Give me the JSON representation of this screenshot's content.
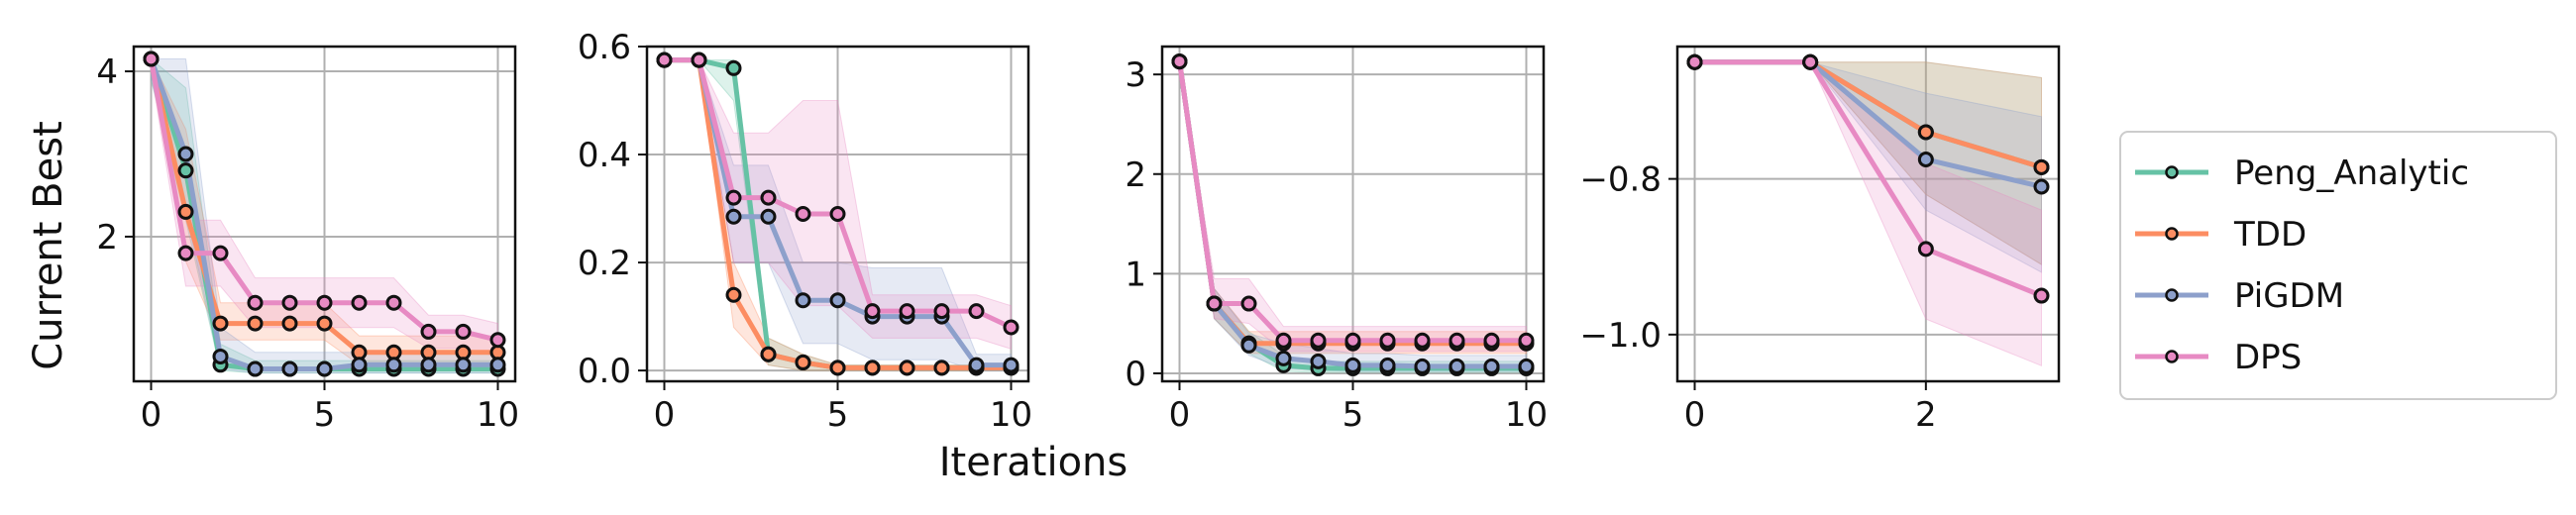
{
  "figure": {
    "ylabel": "Current Best",
    "xlabel": "Iterations"
  },
  "legend": {
    "placement": "right",
    "entries": [
      {
        "name": "Peng_Analytic",
        "color": "#66c2a5"
      },
      {
        "name": "TDD",
        "color": "#fc8d62"
      },
      {
        "name": "PiGDM",
        "color": "#8da0cb"
      },
      {
        "name": "DPS",
        "color": "#e78ac3"
      }
    ]
  },
  "chart_data": [
    {
      "type": "line",
      "grid": true,
      "xlim": [
        -0.5,
        10.5
      ],
      "ylim": [
        0.25,
        4.3
      ],
      "xticks": [
        0,
        5,
        10
      ],
      "yticks": [
        2,
        4
      ],
      "x": [
        0,
        1,
        2,
        3,
        4,
        5,
        6,
        7,
        8,
        9,
        10
      ],
      "series": [
        {
          "name": "Peng_Analytic",
          "color": "#66c2a5",
          "values": [
            4.15,
            2.8,
            0.45,
            0.4,
            0.4,
            0.4,
            0.4,
            0.4,
            0.4,
            0.4,
            0.4
          ],
          "lower": [
            3.9,
            2.2,
            0.38,
            0.35,
            0.35,
            0.35,
            0.35,
            0.35,
            0.35,
            0.35,
            0.35
          ],
          "upper": [
            4.15,
            3.8,
            0.7,
            0.5,
            0.5,
            0.5,
            0.5,
            0.5,
            0.5,
            0.5,
            0.5
          ]
        },
        {
          "name": "TDD",
          "color": "#fc8d62",
          "values": [
            4.15,
            2.3,
            0.95,
            0.95,
            0.95,
            0.95,
            0.6,
            0.6,
            0.6,
            0.6,
            0.6
          ],
          "lower": [
            4.0,
            1.7,
            0.75,
            0.75,
            0.75,
            0.75,
            0.45,
            0.45,
            0.45,
            0.45,
            0.45
          ],
          "upper": [
            4.15,
            3.3,
            1.2,
            1.2,
            1.2,
            1.2,
            0.8,
            0.8,
            0.8,
            0.8,
            0.8
          ]
        },
        {
          "name": "PiGDM",
          "color": "#8da0cb",
          "values": [
            4.15,
            3.0,
            0.55,
            0.4,
            0.4,
            0.4,
            0.45,
            0.45,
            0.45,
            0.45,
            0.45
          ],
          "lower": [
            3.9,
            2.3,
            0.4,
            0.35,
            0.35,
            0.35,
            0.35,
            0.35,
            0.35,
            0.35,
            0.35
          ],
          "upper": [
            4.15,
            4.15,
            0.9,
            0.6,
            0.6,
            0.6,
            0.6,
            0.6,
            0.6,
            0.6,
            0.6
          ]
        },
        {
          "name": "DPS",
          "color": "#e78ac3",
          "values": [
            4.15,
            1.8,
            1.8,
            1.2,
            1.2,
            1.2,
            1.2,
            1.2,
            0.85,
            0.85,
            0.75
          ],
          "lower": [
            4.0,
            1.4,
            1.4,
            0.9,
            0.9,
            0.9,
            0.9,
            0.9,
            0.65,
            0.65,
            0.55
          ],
          "upper": [
            4.15,
            2.2,
            2.2,
            1.5,
            1.5,
            1.5,
            1.5,
            1.5,
            1.05,
            1.05,
            0.95
          ]
        }
      ]
    },
    {
      "type": "line",
      "grid": true,
      "xlim": [
        -0.5,
        10.5
      ],
      "ylim": [
        -0.02,
        0.6
      ],
      "xticks": [
        0,
        5,
        10
      ],
      "yticks": [
        0.0,
        0.2,
        0.4,
        0.6
      ],
      "ytick_labels": [
        "0.0",
        "0.2",
        "0.4",
        "0.6"
      ],
      "x": [
        0,
        1,
        2,
        3,
        4,
        5,
        6,
        7,
        8,
        9,
        10
      ],
      "series": [
        {
          "name": "Peng_Analytic",
          "color": "#66c2a5",
          "values": [
            0.575,
            0.575,
            0.56,
            0.03,
            0.015,
            0.005,
            0.005,
            0.005,
            0.005,
            0.005,
            0.005
          ],
          "lower": [
            0.575,
            0.575,
            0.5,
            0.01,
            0.0,
            0.0,
            0.0,
            0.0,
            0.0,
            0.0,
            0.0
          ],
          "upper": [
            0.575,
            0.575,
            0.575,
            0.06,
            0.03,
            0.01,
            0.01,
            0.01,
            0.01,
            0.01,
            0.01
          ]
        },
        {
          "name": "TDD",
          "color": "#fc8d62",
          "values": [
            0.575,
            0.575,
            0.14,
            0.03,
            0.015,
            0.005,
            0.005,
            0.005,
            0.005,
            0.005,
            0.005
          ],
          "lower": [
            0.575,
            0.575,
            0.08,
            0.01,
            0.0,
            0.0,
            0.0,
            0.0,
            0.0,
            0.0,
            0.0
          ],
          "upper": [
            0.575,
            0.575,
            0.2,
            0.06,
            0.03,
            0.01,
            0.01,
            0.01,
            0.01,
            0.01,
            0.01
          ]
        },
        {
          "name": "PiGDM",
          "color": "#8da0cb",
          "values": [
            0.575,
            0.575,
            0.285,
            0.285,
            0.13,
            0.13,
            0.1,
            0.1,
            0.1,
            0.01,
            0.01
          ],
          "lower": [
            0.575,
            0.575,
            0.2,
            0.2,
            0.05,
            0.05,
            0.02,
            0.02,
            0.02,
            0.0,
            0.0
          ],
          "upper": [
            0.575,
            0.575,
            0.38,
            0.38,
            0.2,
            0.2,
            0.19,
            0.19,
            0.19,
            0.03,
            0.03
          ]
        },
        {
          "name": "DPS",
          "color": "#e78ac3",
          "values": [
            0.575,
            0.575,
            0.32,
            0.32,
            0.29,
            0.29,
            0.11,
            0.11,
            0.11,
            0.11,
            0.08
          ],
          "lower": [
            0.575,
            0.575,
            0.2,
            0.2,
            0.12,
            0.12,
            0.06,
            0.06,
            0.06,
            0.06,
            0.04
          ],
          "upper": [
            0.575,
            0.575,
            0.44,
            0.44,
            0.5,
            0.5,
            0.14,
            0.14,
            0.14,
            0.14,
            0.12
          ]
        }
      ]
    },
    {
      "type": "line",
      "grid": true,
      "xlim": [
        -0.5,
        10.5
      ],
      "ylim": [
        -0.08,
        3.28
      ],
      "xticks": [
        0,
        5,
        10
      ],
      "yticks": [
        0,
        1,
        2,
        3
      ],
      "x": [
        0,
        1,
        2,
        3,
        4,
        5,
        6,
        7,
        8,
        9,
        10
      ],
      "series": [
        {
          "name": "Peng_Analytic",
          "color": "#66c2a5",
          "values": [
            3.13,
            0.7,
            0.3,
            0.08,
            0.05,
            0.05,
            0.05,
            0.05,
            0.05,
            0.05,
            0.05
          ],
          "lower": [
            3.13,
            0.55,
            0.2,
            0.02,
            0.01,
            0.01,
            0.01,
            0.01,
            0.01,
            0.01,
            0.01
          ],
          "upper": [
            3.13,
            0.85,
            0.42,
            0.18,
            0.12,
            0.12,
            0.12,
            0.12,
            0.12,
            0.12,
            0.12
          ]
        },
        {
          "name": "TDD",
          "color": "#fc8d62",
          "values": [
            3.13,
            0.7,
            0.3,
            0.3,
            0.3,
            0.3,
            0.3,
            0.3,
            0.3,
            0.3,
            0.3
          ],
          "lower": [
            3.13,
            0.55,
            0.2,
            0.2,
            0.2,
            0.2,
            0.2,
            0.2,
            0.2,
            0.2,
            0.2
          ],
          "upper": [
            3.13,
            0.85,
            0.42,
            0.42,
            0.42,
            0.42,
            0.42,
            0.42,
            0.42,
            0.42,
            0.42
          ]
        },
        {
          "name": "PiGDM",
          "color": "#8da0cb",
          "values": [
            3.13,
            0.7,
            0.28,
            0.15,
            0.12,
            0.08,
            0.08,
            0.07,
            0.07,
            0.07,
            0.07
          ],
          "lower": [
            3.13,
            0.55,
            0.18,
            0.05,
            0.03,
            0.02,
            0.02,
            0.02,
            0.02,
            0.02,
            0.02
          ],
          "upper": [
            3.13,
            0.85,
            0.4,
            0.3,
            0.25,
            0.2,
            0.2,
            0.18,
            0.18,
            0.18,
            0.18
          ]
        },
        {
          "name": "DPS",
          "color": "#e78ac3",
          "values": [
            3.13,
            0.7,
            0.7,
            0.33,
            0.33,
            0.33,
            0.33,
            0.33,
            0.33,
            0.33,
            0.33
          ],
          "lower": [
            3.13,
            0.55,
            0.5,
            0.22,
            0.22,
            0.22,
            0.22,
            0.22,
            0.22,
            0.22,
            0.22
          ],
          "upper": [
            3.13,
            0.95,
            0.95,
            0.47,
            0.47,
            0.47,
            0.47,
            0.47,
            0.47,
            0.47,
            0.47
          ]
        }
      ]
    },
    {
      "type": "line",
      "grid": true,
      "xlim": [
        -0.15,
        3.15
      ],
      "ylim": [
        -1.06,
        -0.63
      ],
      "xticks": [
        0,
        2
      ],
      "yticks": [
        -0.8,
        -1.0
      ],
      "ytick_labels": [
        "−0.8",
        "−1.0"
      ],
      "x": [
        0,
        1,
        2,
        3
      ],
      "series": [
        {
          "name": "Peng_Analytic",
          "color": "#66c2a5",
          "values": [
            -0.65,
            -0.65,
            -0.74,
            -0.785
          ],
          "lower": [
            -0.65,
            -0.65,
            -0.82,
            -0.91
          ],
          "upper": [
            -0.65,
            -0.65,
            -0.65,
            -0.67
          ]
        },
        {
          "name": "TDD",
          "color": "#fc8d62",
          "values": [
            -0.65,
            -0.65,
            -0.74,
            -0.785
          ],
          "lower": [
            -0.65,
            -0.65,
            -0.82,
            -0.91
          ],
          "upper": [
            -0.65,
            -0.65,
            -0.65,
            -0.67
          ]
        },
        {
          "name": "PiGDM",
          "color": "#8da0cb",
          "values": [
            -0.65,
            -0.65,
            -0.775,
            -0.81
          ],
          "lower": [
            -0.65,
            -0.65,
            -0.84,
            -0.92
          ],
          "upper": [
            -0.65,
            -0.65,
            -0.69,
            -0.72
          ]
        },
        {
          "name": "DPS",
          "color": "#e78ac3",
          "values": [
            -0.65,
            -0.65,
            -0.89,
            -0.95
          ],
          "lower": [
            -0.65,
            -0.65,
            -0.98,
            -1.04
          ],
          "upper": [
            -0.65,
            -0.65,
            -0.78,
            -0.84
          ]
        }
      ]
    }
  ]
}
